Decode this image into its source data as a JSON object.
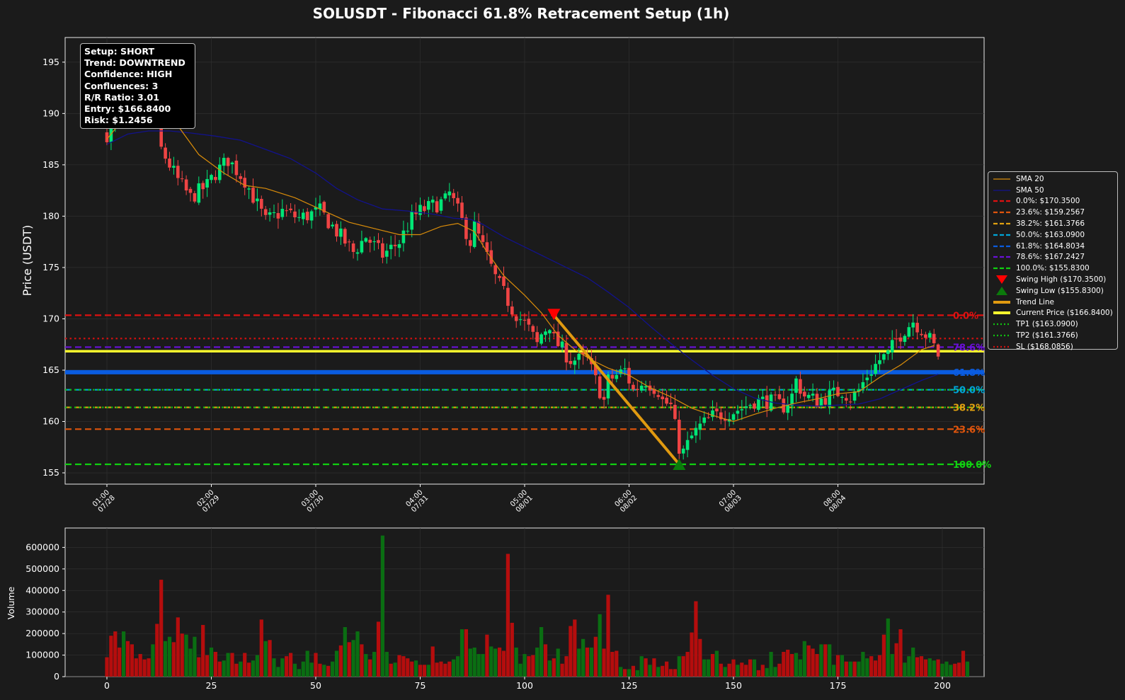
{
  "title": "SOLUSDT - Fibonacci 61.8% Retracement Setup (1h)",
  "colors": {
    "background": "#1b1b1b",
    "bull": "#00e676",
    "bear": "#ef4444",
    "vol_up": "#0a6e12",
    "vol_down": "#b50d0d",
    "sma20": "#d98c0a",
    "sma50": "#12128c",
    "trend_line": "#e09a10",
    "current_price": "#ffff2e"
  },
  "info_box": {
    "setup": "Setup: SHORT",
    "trend": "Trend: DOWNTREND",
    "confidence": "Confidence: HIGH",
    "confluences": "Confluences: 3",
    "rr": "R/R Ratio: 3.01",
    "entry": "Entry: $166.8400",
    "risk": "Risk: $1.2456"
  },
  "legend": [
    {
      "label": "SMA 20",
      "color": "#d98c0a",
      "style": "solid-thin"
    },
    {
      "label": "SMA 50",
      "color": "#12128c",
      "style": "solid-thin"
    },
    {
      "label": "0.0%: $170.3500",
      "color": "#e01010",
      "style": "dashed"
    },
    {
      "label": "23.6%: $159.2567",
      "color": "#e0550c",
      "style": "dashed"
    },
    {
      "label": "38.2%: $161.3766",
      "color": "#e0a010",
      "style": "dashed"
    },
    {
      "label": "50.0%: $163.0900",
      "color": "#00a6d8",
      "style": "dashed"
    },
    {
      "label": "61.8%: $164.8034",
      "color": "#0a5ce0",
      "style": "dashed"
    },
    {
      "label": "78.6%: $167.2427",
      "color": "#6a10d8",
      "style": "dashed"
    },
    {
      "label": "100.0%: $155.8300",
      "color": "#10d010",
      "style": "dashed"
    },
    {
      "label": "Swing High ($170.3500)",
      "color": "#ff0000",
      "style": "tri-down"
    },
    {
      "label": "Swing Low ($155.8300)",
      "color": "#0b7a0b",
      "style": "tri-up"
    },
    {
      "label": "Trend Line",
      "color": "#e09a10",
      "style": "thick"
    },
    {
      "label": "Current Price ($166.8400)",
      "color": "#ffff2e",
      "style": "thick"
    },
    {
      "label": "TP1 ($163.0900)",
      "color": "#10c010",
      "style": "dotted"
    },
    {
      "label": "TP2 ($161.3766)",
      "color": "#10c010",
      "style": "dotted"
    },
    {
      "label": "SL ($168.0856)",
      "color": "#d01010",
      "style": "dotted"
    }
  ],
  "chart_data": [
    {
      "type": "candlestick",
      "title": "SOLUSDT - Fibonacci 61.8% Retracement Setup (1h)",
      "ylabel": "Price (USDT)",
      "xlim": [
        -10,
        210
      ],
      "ylim": [
        153.9,
        197.4
      ],
      "yticks": [
        155,
        160,
        165,
        170,
        175,
        180,
        185,
        190,
        195
      ],
      "xtick_labels": [
        {
          "x": 0,
          "label": "01:00\n07/28"
        },
        {
          "x": 25,
          "label": "02:00\n07/29"
        },
        {
          "x": 50,
          "label": "03:00\n07/30"
        },
        {
          "x": 75,
          "label": "04:00\n07/31"
        },
        {
          "x": 100,
          "label": "05:00\n08/01"
        },
        {
          "x": 125,
          "label": "06:00\n08/02"
        },
        {
          "x": 150,
          "label": "07:00\n08/03"
        },
        {
          "x": 175,
          "label": "08:00\n08/04"
        }
      ],
      "grid": true,
      "legend_position": "outside right",
      "close_path": [
        [
          0,
          188
        ],
        [
          5,
          190.5
        ],
        [
          9,
          192
        ],
        [
          12,
          190
        ],
        [
          13,
          186.5
        ],
        [
          17,
          183.5
        ],
        [
          20,
          181.8
        ],
        [
          24,
          183
        ],
        [
          26,
          184.2
        ],
        [
          29,
          185.5
        ],
        [
          33,
          183.5
        ],
        [
          38,
          179.5
        ],
        [
          42,
          180.5
        ],
        [
          46,
          179.8
        ],
        [
          51,
          180.5
        ],
        [
          55,
          178.5
        ],
        [
          59,
          176.5
        ],
        [
          62,
          178
        ],
        [
          66,
          176.2
        ],
        [
          70,
          177.5
        ],
        [
          73,
          179.8
        ],
        [
          75,
          180.5
        ],
        [
          78,
          181
        ],
        [
          81,
          181.5
        ],
        [
          82,
          182.2
        ],
        [
          84,
          180.5
        ],
        [
          87,
          177.5
        ],
        [
          88,
          179
        ],
        [
          91,
          176
        ],
        [
          93,
          174
        ],
        [
          97,
          171
        ],
        [
          101,
          169
        ],
        [
          103,
          167.5
        ],
        [
          104,
          168.5
        ],
        [
          106,
          169.5
        ],
        [
          107,
          168
        ],
        [
          110,
          166.5
        ],
        [
          111,
          166
        ],
        [
          115,
          166
        ],
        [
          117,
          164
        ],
        [
          119,
          162
        ],
        [
          120,
          164
        ],
        [
          124,
          165
        ],
        [
          126,
          163
        ],
        [
          129,
          164
        ],
        [
          132,
          163
        ],
        [
          133,
          162
        ],
        [
          135,
          161.5
        ],
        [
          137,
          157.5
        ],
        [
          138,
          157
        ],
        [
          140,
          158.5
        ],
        [
          142,
          159.5
        ],
        [
          145,
          160.5
        ],
        [
          148,
          160.8
        ],
        [
          150,
          161
        ],
        [
          152,
          161.3
        ],
        [
          155,
          162
        ],
        [
          158,
          162
        ],
        [
          160,
          161.8
        ],
        [
          162,
          161.5
        ],
        [
          164,
          162.5
        ],
        [
          165,
          164
        ],
        [
          167,
          162.5
        ],
        [
          170,
          162
        ],
        [
          173,
          162.5
        ],
        [
          176,
          163
        ],
        [
          178,
          162.3
        ],
        [
          180,
          163
        ],
        [
          182,
          164.5
        ],
        [
          185,
          166
        ],
        [
          187,
          166.5
        ],
        [
          189,
          168
        ],
        [
          191,
          169
        ],
        [
          193,
          169.8
        ],
        [
          195,
          169
        ],
        [
          197,
          168
        ],
        [
          198,
          167.3
        ],
        [
          199,
          166.5
        ]
      ],
      "sma20": [
        [
          0,
          187.5
        ],
        [
          4,
          189.5
        ],
        [
          8,
          190.8
        ],
        [
          12,
          190.5
        ],
        [
          17,
          188.8
        ],
        [
          22,
          186
        ],
        [
          28,
          184.2
        ],
        [
          33,
          183
        ],
        [
          38,
          182.7
        ],
        [
          45,
          181.8
        ],
        [
          52,
          180.5
        ],
        [
          58,
          179.4
        ],
        [
          65,
          178.7
        ],
        [
          70,
          178.2
        ],
        [
          75,
          178.2
        ],
        [
          80,
          179
        ],
        [
          84,
          179.3
        ],
        [
          88,
          178.5
        ],
        [
          91,
          176.5
        ],
        [
          95,
          174.2
        ],
        [
          100,
          172.3
        ],
        [
          104,
          170.6
        ],
        [
          108,
          168.4
        ],
        [
          112,
          167
        ],
        [
          116,
          166
        ],
        [
          120,
          165.2
        ],
        [
          125,
          164.5
        ],
        [
          130,
          163.3
        ],
        [
          135,
          162.4
        ],
        [
          140,
          161.3
        ],
        [
          145,
          160.6
        ],
        [
          150,
          160
        ],
        [
          155,
          160.7
        ],
        [
          160,
          161.3
        ],
        [
          165,
          161.8
        ],
        [
          170,
          162.2
        ],
        [
          175,
          162.7
        ],
        [
          180,
          162.9
        ],
        [
          185,
          164.3
        ],
        [
          190,
          165.5
        ],
        [
          195,
          167
        ],
        [
          198,
          167.4
        ]
      ],
      "sma50": [
        [
          0,
          187
        ],
        [
          5,
          188
        ],
        [
          10,
          188.3
        ],
        [
          15,
          188.3
        ],
        [
          20,
          188.1
        ],
        [
          26,
          187.8
        ],
        [
          32,
          187.4
        ],
        [
          38,
          186.5
        ],
        [
          44,
          185.6
        ],
        [
          50,
          184.2
        ],
        [
          55,
          182.7
        ],
        [
          60,
          181.6
        ],
        [
          66,
          180.7
        ],
        [
          72,
          180.5
        ],
        [
          78,
          180.2
        ],
        [
          83,
          179.8
        ],
        [
          87,
          179.7
        ],
        [
          90,
          179.2
        ],
        [
          95,
          178
        ],
        [
          100,
          177
        ],
        [
          105,
          176
        ],
        [
          110,
          175
        ],
        [
          115,
          174
        ],
        [
          120,
          172.6
        ],
        [
          125,
          171.1
        ],
        [
          130,
          169.3
        ],
        [
          135,
          167.6
        ],
        [
          140,
          166
        ],
        [
          145,
          164.5
        ],
        [
          150,
          163.2
        ],
        [
          155,
          162.3
        ],
        [
          160,
          161.8
        ],
        [
          165,
          161.6
        ],
        [
          170,
          161.5
        ],
        [
          175,
          161.6
        ],
        [
          180,
          161.7
        ],
        [
          185,
          162.2
        ],
        [
          190,
          163.1
        ],
        [
          195,
          164
        ],
        [
          199,
          164.6
        ]
      ],
      "fib_levels": [
        {
          "label": "0.0%",
          "price": 170.35,
          "color": "#e01010"
        },
        {
          "label": "23.6%",
          "price": 159.2567,
          "color": "#e0550c"
        },
        {
          "label": "38.2%",
          "price": 161.3766,
          "color": "#e0a010"
        },
        {
          "label": "50.0%",
          "price": 163.09,
          "color": "#00a6d8"
        },
        {
          "label": "61.8%",
          "price": 164.8034,
          "color": "#0a5ce0"
        },
        {
          "label": "78.6%",
          "price": 167.2427,
          "color": "#6a10d8"
        },
        {
          "label": "100.0%",
          "price": 155.83,
          "color": "#10d010"
        }
      ],
      "current_price": 166.84,
      "tp1": 163.09,
      "tp2": 161.3766,
      "sl": 168.0856,
      "swing_high": {
        "x": 107,
        "price": 170.35
      },
      "swing_low": {
        "x": 137,
        "price": 155.83
      },
      "trend_line": [
        [
          107,
          170.35
        ],
        [
          137,
          155.83
        ]
      ]
    },
    {
      "type": "bar",
      "ylabel": "Volume",
      "xlim": [
        -10,
        210
      ],
      "ylim": [
        0,
        690000
      ],
      "xticks": [
        0,
        25,
        50,
        75,
        100,
        125,
        150,
        175,
        200
      ],
      "yticks": [
        0,
        100000,
        200000,
        300000,
        400000,
        500000,
        600000
      ],
      "values": [
        90000,
        190000,
        210000,
        135000,
        210000,
        165000,
        150000,
        85000,
        105000,
        80000,
        85000,
        150000,
        245000,
        450000,
        165000,
        185000,
        160000,
        275000,
        200000,
        195000,
        130000,
        185000,
        90000,
        240000,
        100000,
        135000,
        115000,
        70000,
        75000,
        110000,
        110000,
        60000,
        70000,
        110000,
        65000,
        75000,
        100000,
        265000,
        165000,
        170000,
        85000,
        45000,
        85000,
        95000,
        110000,
        60000,
        35000,
        70000,
        120000,
        65000,
        110000,
        60000,
        55000,
        50000,
        70000,
        120000,
        145000,
        230000,
        160000,
        170000,
        210000,
        150000,
        105000,
        80000,
        115000,
        255000,
        655000,
        115000,
        60000,
        65000,
        100000,
        95000,
        85000,
        70000,
        75000,
        55000,
        55000,
        55000,
        140000,
        65000,
        70000,
        60000,
        70000,
        80000,
        95000,
        220000,
        220000,
        130000,
        135000,
        105000,
        105000,
        195000,
        140000,
        130000,
        135000,
        120000,
        570000,
        250000,
        135000,
        60000,
        105000,
        95000,
        100000,
        135000,
        230000,
        150000,
        75000,
        85000,
        130000,
        60000,
        95000,
        235000,
        265000,
        130000,
        175000,
        135000,
        135000,
        185000,
        290000,
        130000,
        380000,
        115000,
        120000,
        45000,
        35000,
        35000,
        50000,
        30000,
        95000,
        85000,
        55000,
        85000,
        45000,
        50000,
        70000,
        35000,
        35000,
        95000,
        95000,
        115000,
        205000,
        350000,
        175000,
        80000,
        80000,
        105000,
        120000,
        60000,
        45000,
        60000,
        80000,
        55000,
        65000,
        55000,
        80000,
        80000,
        30000,
        55000,
        40000,
        115000,
        45000,
        60000,
        115000,
        125000,
        105000,
        110000,
        80000,
        165000,
        145000,
        130000,
        105000,
        150000,
        150000,
        150000,
        55000,
        100000,
        100000,
        70000,
        70000,
        70000,
        70000,
        115000,
        85000,
        95000,
        75000,
        100000,
        195000,
        270000,
        105000,
        155000,
        220000,
        65000,
        95000,
        135000,
        90000,
        95000,
        80000,
        85000,
        75000,
        80000,
        60000,
        70000,
        55000,
        60000,
        65000,
        120000,
        70000
      ]
    }
  ]
}
